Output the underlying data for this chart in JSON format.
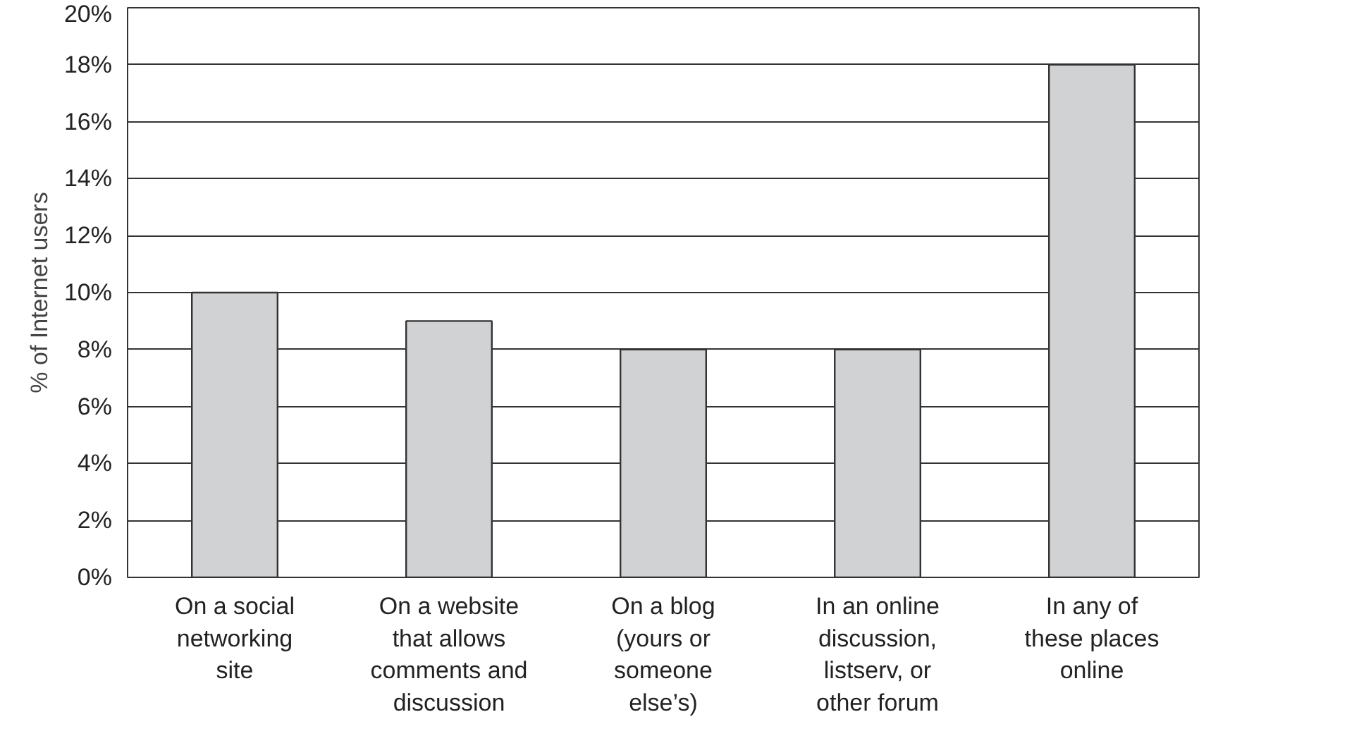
{
  "chart_data": {
    "type": "bar",
    "ylabel": "% of Internet users",
    "categories": [
      "On a social networking site",
      "On a website that allows comments and discussion",
      "On a blog (yours or someone else’s)",
      "In an online discussion, listserv, or other forum",
      "In any of these places online"
    ],
    "values": [
      10,
      9,
      8,
      8,
      18
    ],
    "color": "#d1d2d4",
    "ylim": [
      0,
      20
    ],
    "yticks": [
      {
        "value": 0,
        "label": "0%"
      },
      {
        "value": 2,
        "label": "2%"
      },
      {
        "value": 4,
        "label": "4%"
      },
      {
        "value": 6,
        "label": "6%"
      },
      {
        "value": 8,
        "label": "8%"
      },
      {
        "value": 10,
        "label": "10%"
      },
      {
        "value": 12,
        "label": "12%"
      },
      {
        "value": 14,
        "label": "14%"
      },
      {
        "value": 16,
        "label": "16%"
      },
      {
        "value": 18,
        "label": "18%"
      },
      {
        "value": 20,
        "label": "20%"
      }
    ],
    "grid": "y"
  }
}
